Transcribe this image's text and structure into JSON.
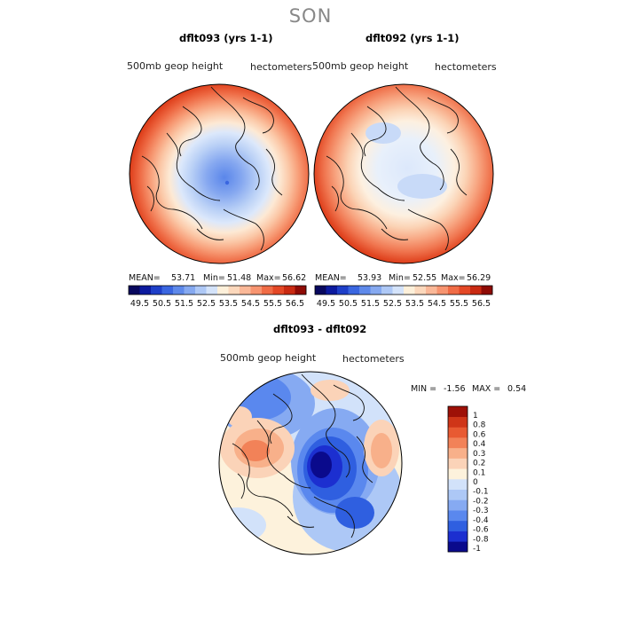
{
  "suptitle": "SON",
  "diff_colorbar_colors": [
    "#0a0a8c",
    "#1c2fd0",
    "#2f5fe0",
    "#5a88ee",
    "#86aaf2",
    "#adc8f6",
    "#d2e2fa",
    "#fdf2dc",
    "#fbd3b8",
    "#f8b08a",
    "#f28258",
    "#e85a32",
    "#cf3518",
    "#9e1007"
  ],
  "chart_data": [
    {
      "type": "heatmap",
      "projection": "north-polar-stereographic",
      "title": "dflt093 (yrs 1-1)",
      "field_label": "500mb geop height",
      "units_label": "hectometers",
      "stats": {
        "mean_label": "MEAN=",
        "mean": "53.71",
        "min_label": "Min=",
        "min": "51.48",
        "max_label": "Max=",
        "max": "56.62"
      },
      "colorbar_ticks": [
        "49.5",
        "50.5",
        "51.5",
        "52.5",
        "53.5",
        "54.5",
        "55.5",
        "56.5"
      ],
      "colorbar_colors": [
        "#08085e",
        "#0c1a9e",
        "#1e3fc8",
        "#3a66e0",
        "#5e89ea",
        "#86a9f0",
        "#aec8f6",
        "#d4e3fa",
        "#fdf0da",
        "#fcd8bc",
        "#fab898",
        "#f79470",
        "#f06c46",
        "#e44826",
        "#c92a12",
        "#8e0b05"
      ]
    },
    {
      "type": "heatmap",
      "projection": "north-polar-stereographic",
      "title": "dflt092 (yrs 1-1)",
      "field_label": "500mb geop height",
      "units_label": "hectometers",
      "stats": {
        "mean_label": "MEAN=",
        "mean": "53.93",
        "min_label": "Min=",
        "min": "52.55",
        "max_label": "Max=",
        "max": "56.29"
      },
      "colorbar_ticks": [
        "49.5",
        "50.5",
        "51.5",
        "52.5",
        "53.5",
        "54.5",
        "55.5",
        "56.5"
      ],
      "colorbar_colors": [
        "#08085e",
        "#0c1a9e",
        "#1e3fc8",
        "#3a66e0",
        "#5e89ea",
        "#86a9f0",
        "#aec8f6",
        "#d4e3fa",
        "#fdf0da",
        "#fcd8bc",
        "#fab898",
        "#f79470",
        "#f06c46",
        "#e44826",
        "#c92a12",
        "#8e0b05"
      ]
    },
    {
      "type": "heatmap",
      "projection": "north-polar-stereographic",
      "title": "dflt093 - dflt092",
      "field_label": "500mb geop height",
      "units_label": "hectometers",
      "stats": {
        "min_label": "MIN =",
        "min": "-1.56",
        "max_label": "MAX =",
        "max": "0.54"
      },
      "colorbar_ticks": [
        "1",
        "0.8",
        "0.6",
        "0.4",
        "0.3",
        "0.2",
        "0.1",
        "0",
        "-0.1",
        "-0.2",
        "-0.3",
        "-0.4",
        "-0.6",
        "-0.8",
        "-1"
      ]
    }
  ]
}
